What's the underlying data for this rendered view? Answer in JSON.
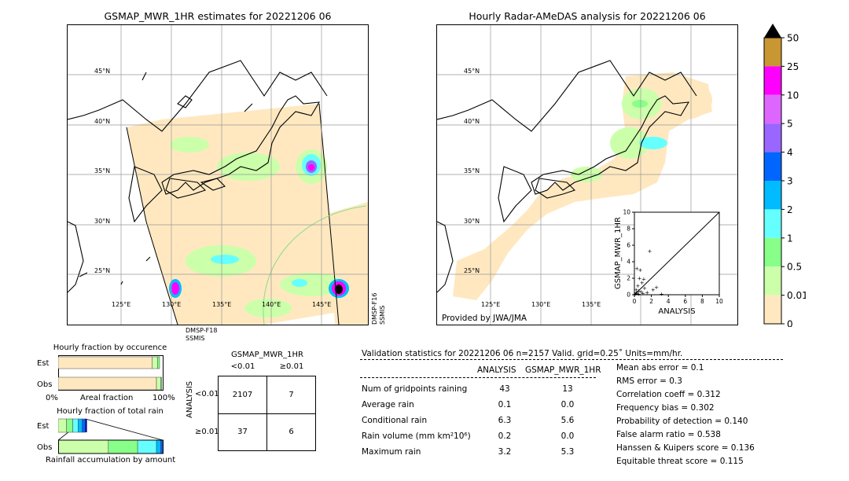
{
  "left_map": {
    "title": "GSMAP_MWR_1HR estimates for 20221206 06",
    "lat_labels": [
      "45°N",
      "40°N",
      "35°N",
      "30°N",
      "25°N"
    ],
    "lon_labels": [
      "125°E",
      "130°E",
      "135°E",
      "140°E",
      "145°E"
    ],
    "sat_label_1": "DMSP-F18",
    "sat_label_2": "SSMIS",
    "sat_label_3": "DMSP-F16",
    "sat_label_4": "SSMIS"
  },
  "right_map": {
    "title": "Hourly Radar-AMeDAS analysis for 20221206 06",
    "lat_labels": [
      "45°N",
      "40°N",
      "35°N",
      "30°N",
      "25°N"
    ],
    "lon_labels": [
      "125°E",
      "130°E",
      "135°E"
    ],
    "credit": "Provided by JWA/JMA"
  },
  "colorbar": {
    "labels": [
      "50",
      "25",
      "10",
      "5",
      "4",
      "3",
      "2",
      "1",
      "0.5",
      "0.01",
      "0"
    ],
    "colors": [
      "#c89632",
      "#ff00ff",
      "#dd66ff",
      "#9966ff",
      "#0066ff",
      "#00bbff",
      "#66ffff",
      "#88ff88",
      "#ccffaa",
      "#ffe8c0"
    ]
  },
  "chart_data": [
    {
      "type": "scatter",
      "title": "",
      "xlabel": "ANALYSIS",
      "ylabel": "GSMAP_MWR_1HR",
      "xlim": [
        0,
        10
      ],
      "ylim": [
        0,
        10
      ],
      "x_ticks": [
        "0",
        "2",
        "4",
        "6",
        "8",
        "10"
      ],
      "y_ticks": [
        "0",
        "2",
        "4",
        "6",
        "8",
        "10"
      ],
      "points": [
        {
          "x": 0.1,
          "y": 0.1
        },
        {
          "x": 0.3,
          "y": 0.2
        },
        {
          "x": 0.5,
          "y": 0.1
        },
        {
          "x": 0.2,
          "y": 0.6
        },
        {
          "x": 0.8,
          "y": 0.4
        },
        {
          "x": 1.0,
          "y": 0.2
        },
        {
          "x": 0.4,
          "y": 1.1
        },
        {
          "x": 0.6,
          "y": 2.0
        },
        {
          "x": 1.2,
          "y": 0.8
        },
        {
          "x": 1.5,
          "y": 0.3
        },
        {
          "x": 0.9,
          "y": 1.5
        },
        {
          "x": 0.3,
          "y": 3.2
        },
        {
          "x": 0.7,
          "y": 3.0
        },
        {
          "x": 1.8,
          "y": 5.3
        },
        {
          "x": 2.2,
          "y": 0.6
        },
        {
          "x": 3.2,
          "y": 0.1
        },
        {
          "x": 0.2,
          "y": 0.3
        },
        {
          "x": 1.1,
          "y": 1.9
        },
        {
          "x": 0.5,
          "y": 0.5
        },
        {
          "x": 2.6,
          "y": 0.9
        }
      ]
    },
    {
      "type": "bar",
      "title": "Hourly fraction by occurence",
      "categories": [
        "Est",
        "Obs"
      ],
      "xlabel": "Areal fraction",
      "x_ticks": [
        "0%",
        "100%"
      ],
      "series": [
        {
          "values": [
            0.9,
            0.94
          ]
        },
        {
          "values": [
            0.05,
            0.04
          ]
        },
        {
          "values": [
            0.02,
            0.01
          ]
        }
      ]
    },
    {
      "type": "bar",
      "title": "Hourly fraction of total rain",
      "categories": [
        "Est",
        "Obs"
      ],
      "xlabel": "Rainfall accumulation by amount",
      "series": [
        {
          "values": [
            0.08,
            0.48
          ]
        },
        {
          "values": [
            0.06,
            0.28
          ]
        },
        {
          "values": [
            0.05,
            0.18
          ]
        },
        {
          "values": [
            0.04,
            0.04
          ]
        },
        {
          "values": [
            0.03,
            0.02
          ]
        }
      ]
    }
  ],
  "contingency": {
    "col_header": "GSMAP_MWR_1HR",
    "col_lt": "<0.01",
    "col_ge": "≥0.01",
    "row_header": "ANALYSIS",
    "row_lt": "<0.01",
    "row_ge": "≥0.01",
    "cells": [
      "2107",
      "7",
      "37",
      "6"
    ]
  },
  "validation": {
    "header": "Validation statistics for 20221206 06  n=2157 Valid. grid=0.25˚ Units=mm/hr.",
    "col_analysis": "ANALYSIS",
    "col_gsmap": "GSMAP_MWR_1HR",
    "rows": [
      {
        "label": "Num of gridpoints raining",
        "a": "43",
        "g": "13"
      },
      {
        "label": "Average rain",
        "a": "0.1",
        "g": "0.0"
      },
      {
        "label": "Conditional rain",
        "a": "6.3",
        "g": "5.6"
      },
      {
        "label": "Rain volume (mm km²10⁶)",
        "a": "0.2",
        "g": "0.0"
      },
      {
        "label": "Maximum rain",
        "a": "3.2",
        "g": "5.3"
      }
    ],
    "scores": [
      "Mean abs error =    0.1",
      "RMS error =    0.3",
      "Correlation coeff =  0.312",
      "Frequency bias =  0.302",
      "Probability of detection =  0.140",
      "False alarm ratio =  0.538",
      "Hanssen & Kuipers score =  0.136",
      "Equitable threat score =  0.115"
    ]
  }
}
